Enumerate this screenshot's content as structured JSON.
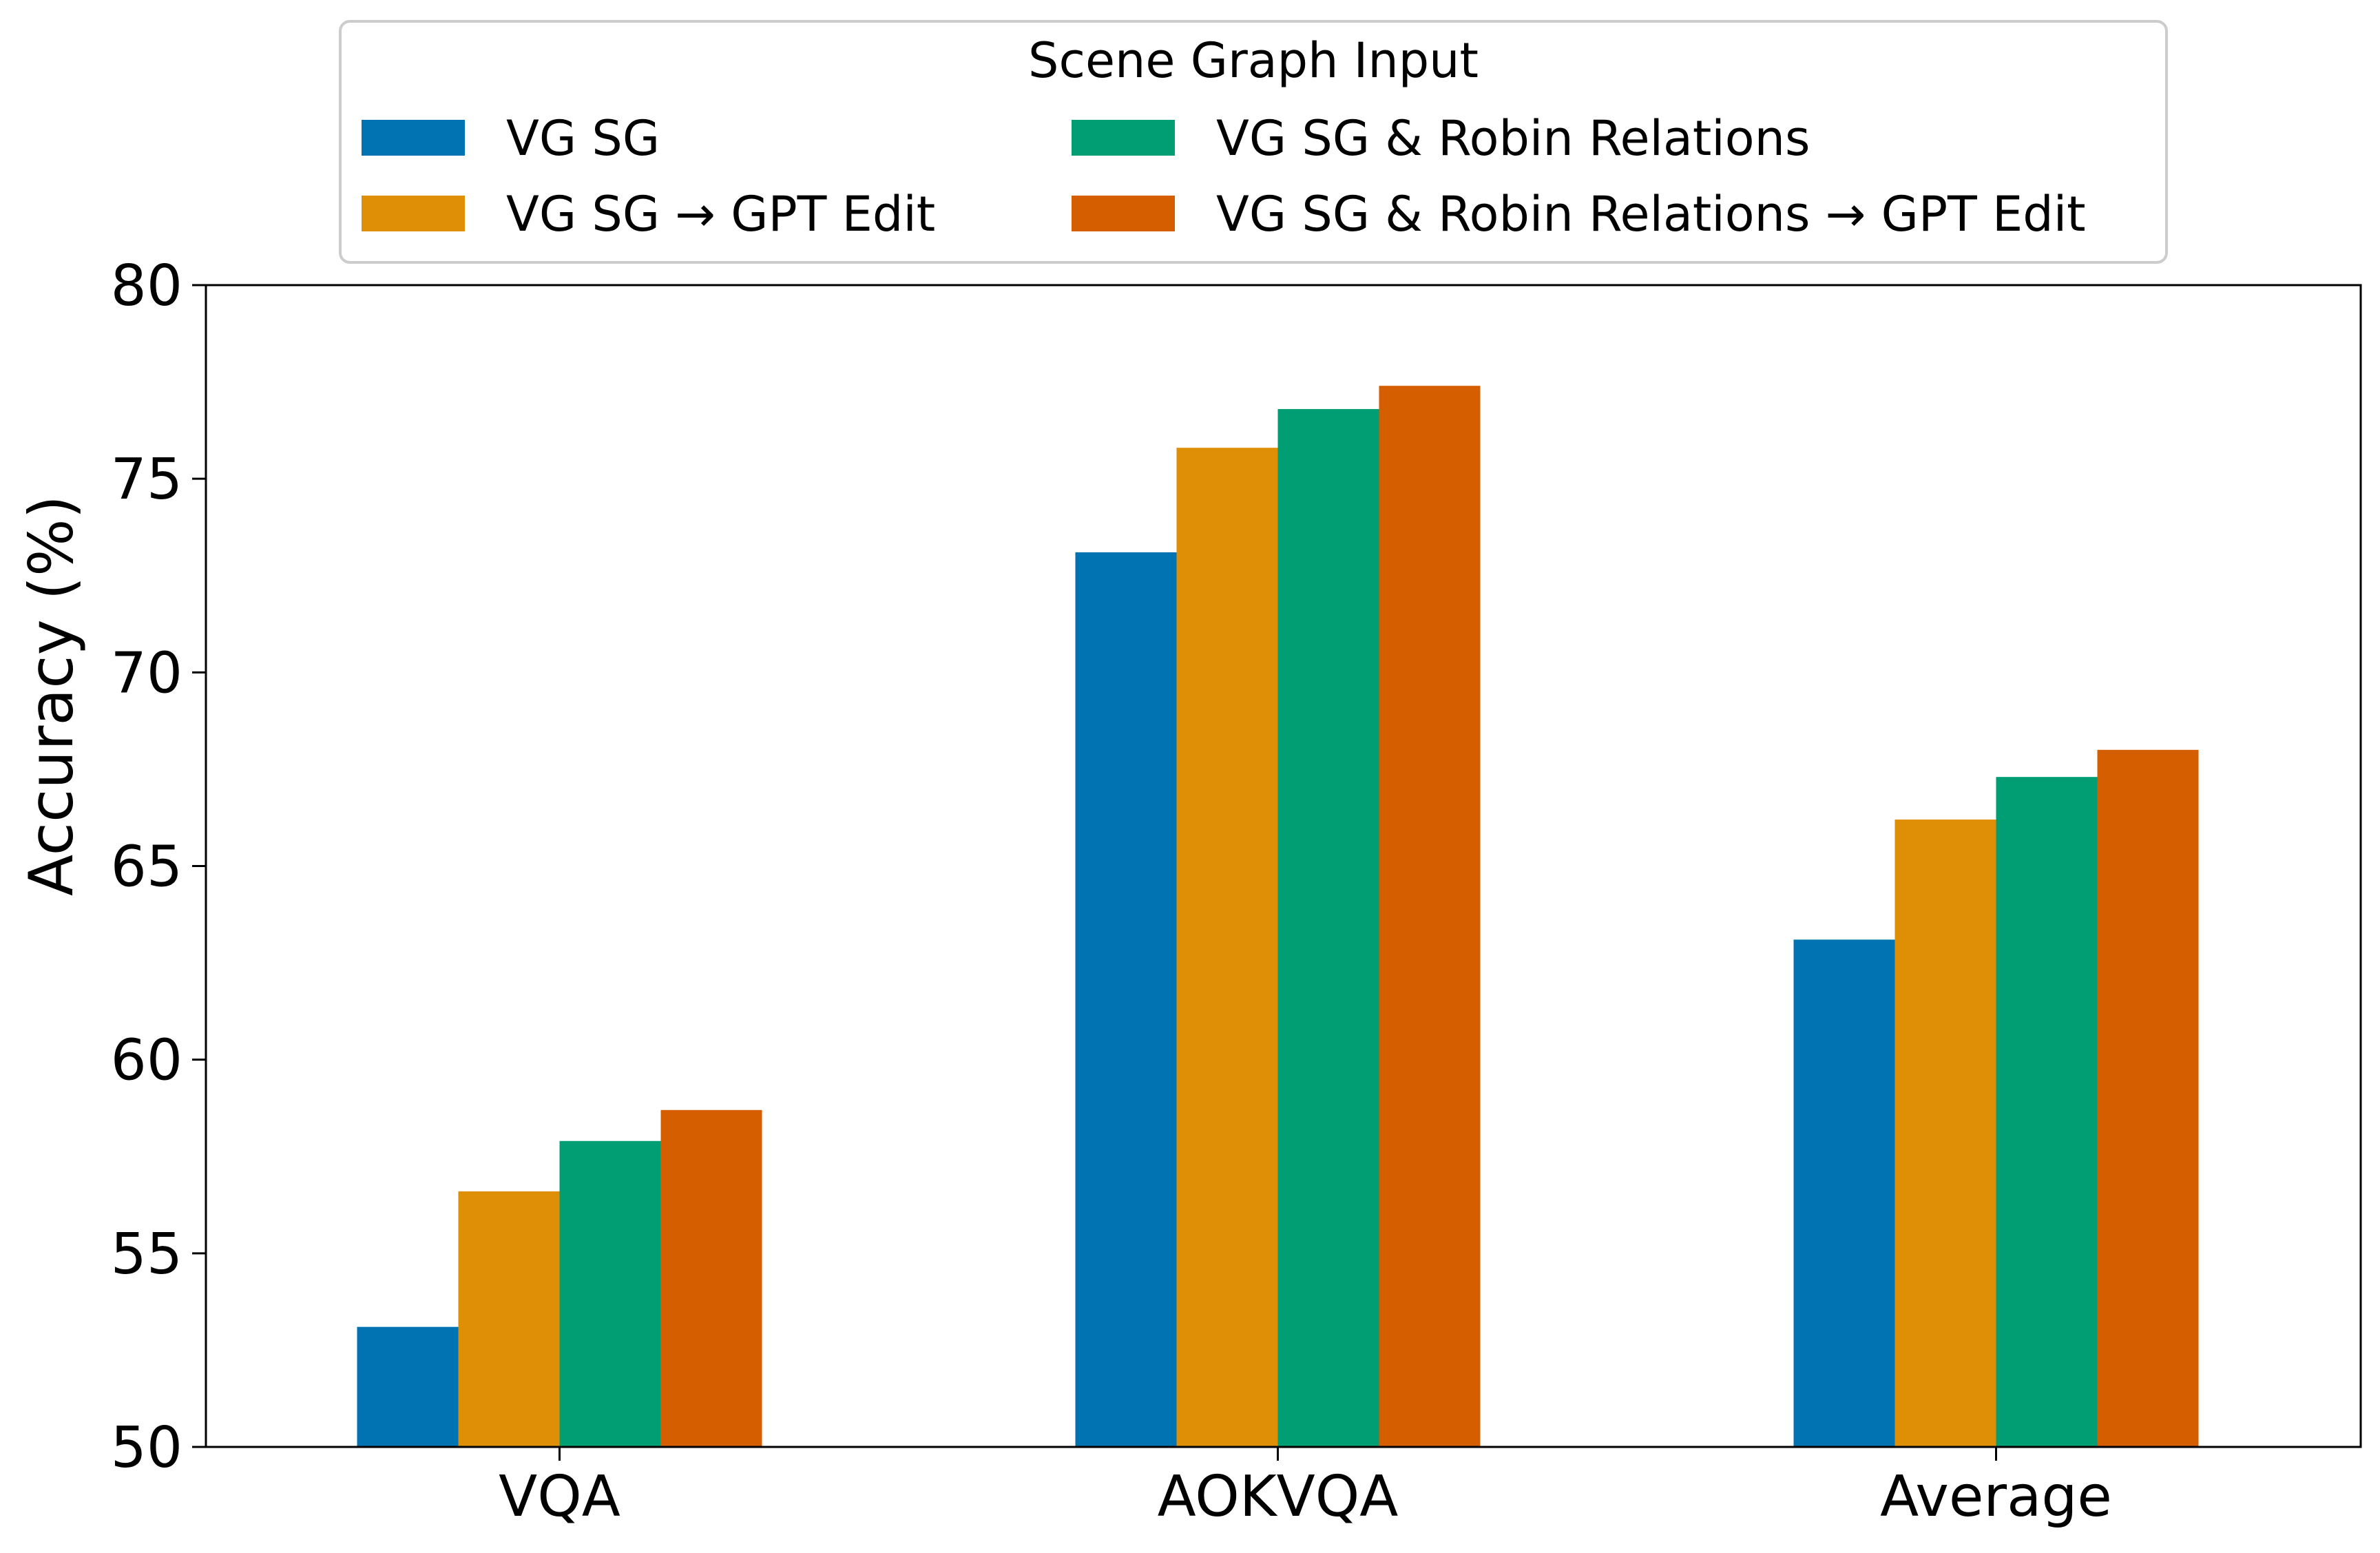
{
  "chart_data": {
    "type": "bar",
    "title": "",
    "xlabel": "",
    "ylabel": "Accuracy (%)",
    "ylim": [
      50,
      80
    ],
    "yticks": [
      50,
      55,
      60,
      65,
      70,
      75,
      80
    ],
    "categories": [
      "VQA",
      "AOKVQA",
      "Average"
    ],
    "grid": false,
    "legend": {
      "title": "Scene Graph Input",
      "placement": "top-center, outside plot, two columns"
    },
    "series": [
      {
        "name": "VG SG",
        "color": "#0173b2",
        "values": [
          53.1,
          73.1,
          63.1
        ]
      },
      {
        "name": "VG SG → GPT Edit",
        "color": "#de8f05",
        "values": [
          56.6,
          75.8,
          66.2
        ]
      },
      {
        "name": "VG SG & Robin Relations",
        "color": "#029e73",
        "values": [
          57.9,
          76.8,
          67.3
        ]
      },
      {
        "name": "VG SG & Robin Relations → GPT Edit",
        "color": "#d55e00",
        "values": [
          58.7,
          77.4,
          68.0
        ]
      }
    ]
  }
}
